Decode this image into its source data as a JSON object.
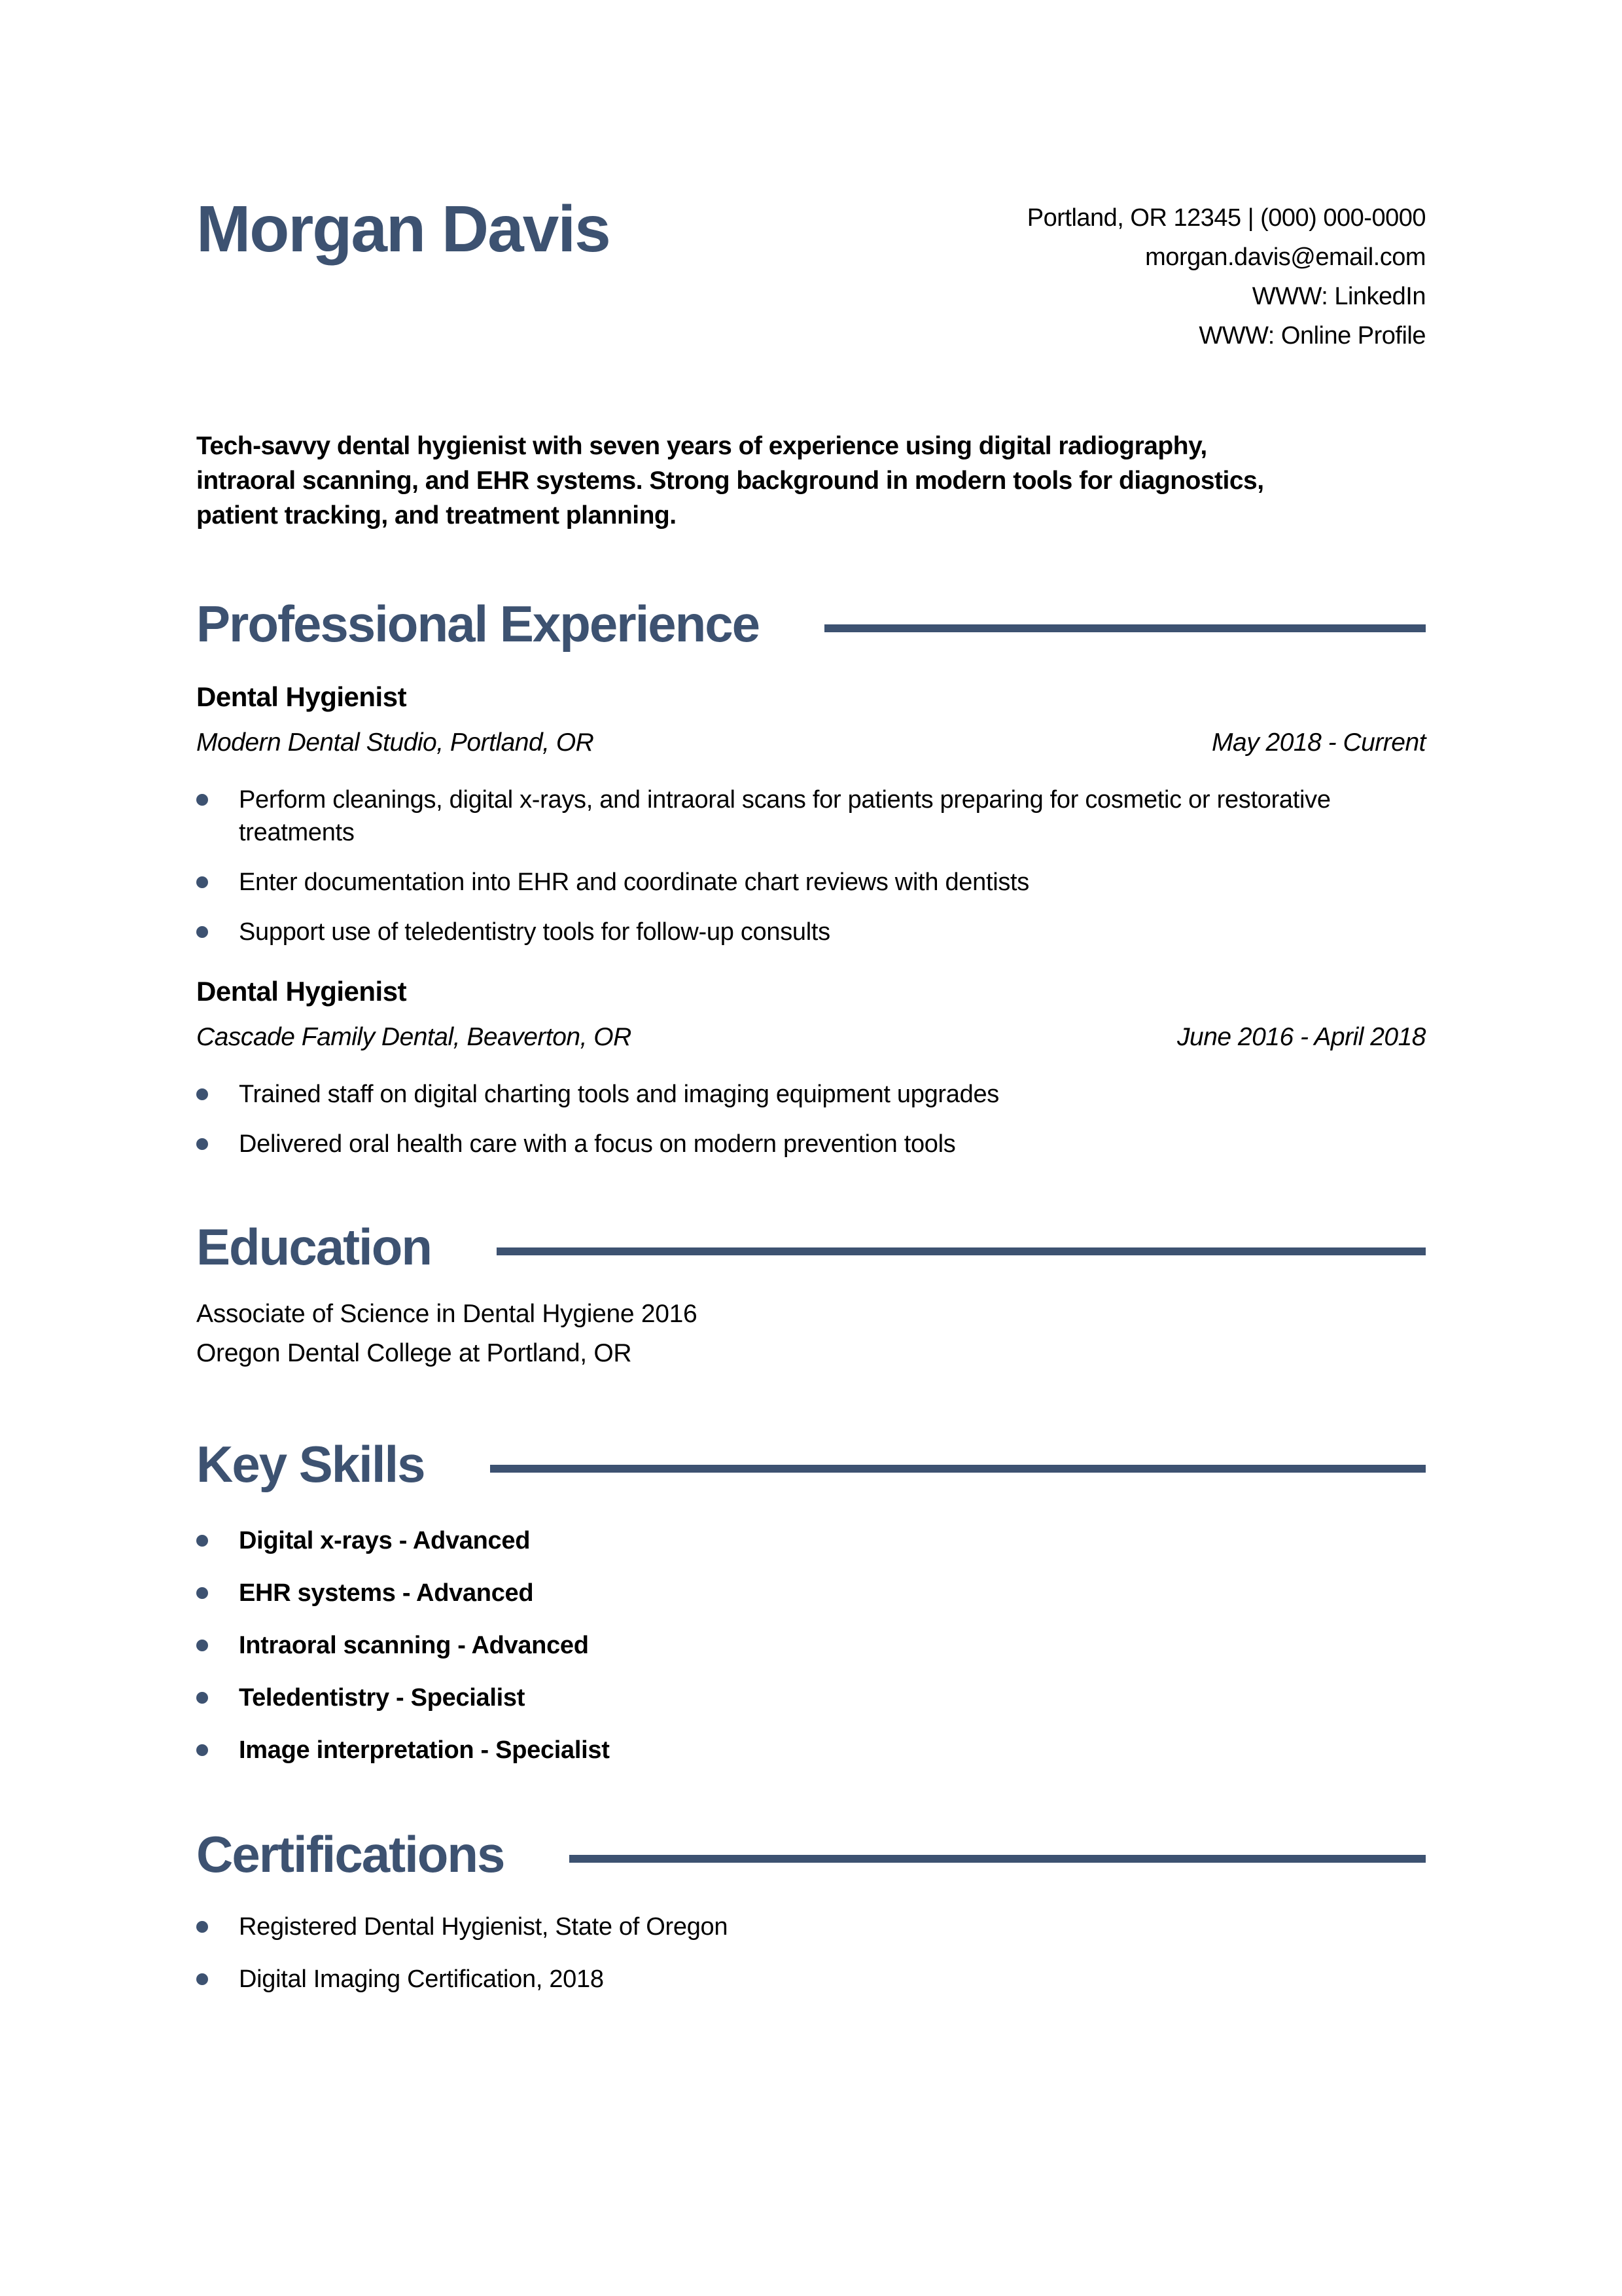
{
  "colors": {
    "accent": "#3D5271",
    "text": "#000000",
    "background": "#FFFFFF"
  },
  "header": {
    "name": "Morgan Davis",
    "contact_lines": [
      "Portland, OR 12345 | (000) 000-0000",
      "morgan.davis@email.com",
      "WWW: LinkedIn",
      "WWW: Online Profile"
    ]
  },
  "summary": "Tech-savvy dental hygienist with seven years of experience using digital radiography, intraoral scanning, and EHR systems. Strong background in modern tools for diagnostics, patient tracking, and treatment planning.",
  "experience": {
    "title": "Professional Experience",
    "jobs": [
      {
        "title": "Dental Hygienist",
        "company": "Modern Dental Studio, Portland, OR",
        "dates": "May 2018 - Current",
        "bullets": [
          "Perform cleanings, digital x-rays, and intraoral scans for patients preparing for cosmetic or restorative treatments",
          "Enter documentation into EHR and coordinate chart reviews with dentists",
          "Support use of teledentistry tools for follow-up consults"
        ]
      },
      {
        "title": "Dental Hygienist",
        "company": "Cascade Family Dental, Beaverton, OR",
        "dates": "June 2016 - April 2018",
        "bullets": [
          "Trained staff on digital charting tools and imaging equipment upgrades",
          "Delivered oral health care with a focus on modern prevention tools"
        ]
      }
    ]
  },
  "education": {
    "title": "Education",
    "lines": [
      "Associate of Science in Dental Hygiene 2016",
      "Oregon Dental College at Portland, OR"
    ]
  },
  "skills": {
    "title": "Key Skills",
    "items": [
      "Digital x-rays - Advanced",
      "EHR systems - Advanced",
      "Intraoral scanning - Advanced",
      "Teledentistry - Specialist",
      "Image interpretation - Specialist"
    ]
  },
  "certifications": {
    "title": "Certifications",
    "items": [
      "Registered Dental Hygienist, State of Oregon",
      "Digital Imaging Certification, 2018"
    ]
  }
}
